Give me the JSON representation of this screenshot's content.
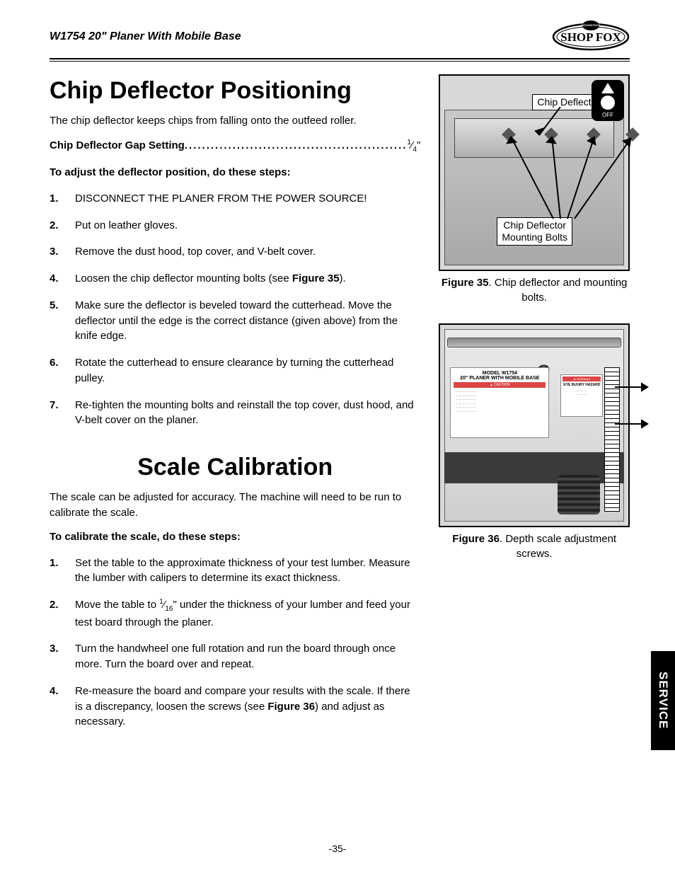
{
  "header": {
    "product": "W1754 20\" Planer With Mobile Base",
    "logo_text": "SHOP FOX"
  },
  "section1": {
    "heading": "Chip Deflector Positioning",
    "intro": "The chip deflector keeps chips from falling onto the outfeed roller.",
    "spec_label": "Chip Deflector Gap Setting ",
    "spec_value_num": "1",
    "spec_value_den": "4",
    "spec_value_suffix": "\"",
    "lead": "To adjust the deflector position, do these steps:",
    "steps": [
      "DISCONNECT THE PLANER FROM THE POWER SOURCE!",
      "Put on leather gloves.",
      "Remove the dust hood, top cover, and V-belt cover.",
      "Loosen the chip deflector mounting bolts (see <b>Figure 35</b>).",
      "Make sure the deflector is beveled toward the cutterhead. Move the deflector until the edge is the correct distance (given above) from the knife edge.",
      "Rotate the cutterhead to ensure clearance by turning the cutterhead pulley.",
      "Re-tighten the mounting bolts and reinstall the top cover, dust hood, and V-belt cover on the planer."
    ]
  },
  "section2": {
    "heading": "Scale Calibration",
    "intro": "The scale can be adjusted for accuracy. The machine will need to be run to calibrate the scale.",
    "lead": "To calibrate the scale, do these steps:",
    "steps": [
      "Set the table to the approximate thickness of your test lumber. Measure the lumber with calipers to determine its exact thickness.",
      "Move the table to <span class='frac-sup'>1</span>⁄<span class='frac-sub'>16</span>\" under the thickness of your lumber and feed your test board through the planer.",
      "Turn the handwheel one full rotation and run the board through once more. Turn the board over and repeat.",
      "Re-measure the board and compare your results with the scale. If there is a discrepancy, loosen the screws (see <b>Figure 36</b>) and adjust as necessary."
    ]
  },
  "figures": {
    "fig35": {
      "callout_top": "Chip Deflector",
      "callout_bottom": "Chip Deflector Mounting Bolts",
      "off_label": "OFF",
      "caption_bold": "Figure 35",
      "caption_rest": ". Chip deflector and mounting bolts."
    },
    "fig36": {
      "model_line1": "MODEL W1754",
      "model_line2": "20\" PLANER WITH MOBILE BASE",
      "warn": "EYE INJURY HAZARD",
      "caption_bold": "Figure 36",
      "caption_rest": ". Depth scale adjustment screws."
    }
  },
  "side_tab": "SERVICE",
  "page_number": "-35-",
  "colors": {
    "text": "#000000",
    "bg": "#ffffff",
    "figure_bg": "#d8d8d8",
    "tab_bg": "#000000",
    "tab_fg": "#ffffff"
  }
}
